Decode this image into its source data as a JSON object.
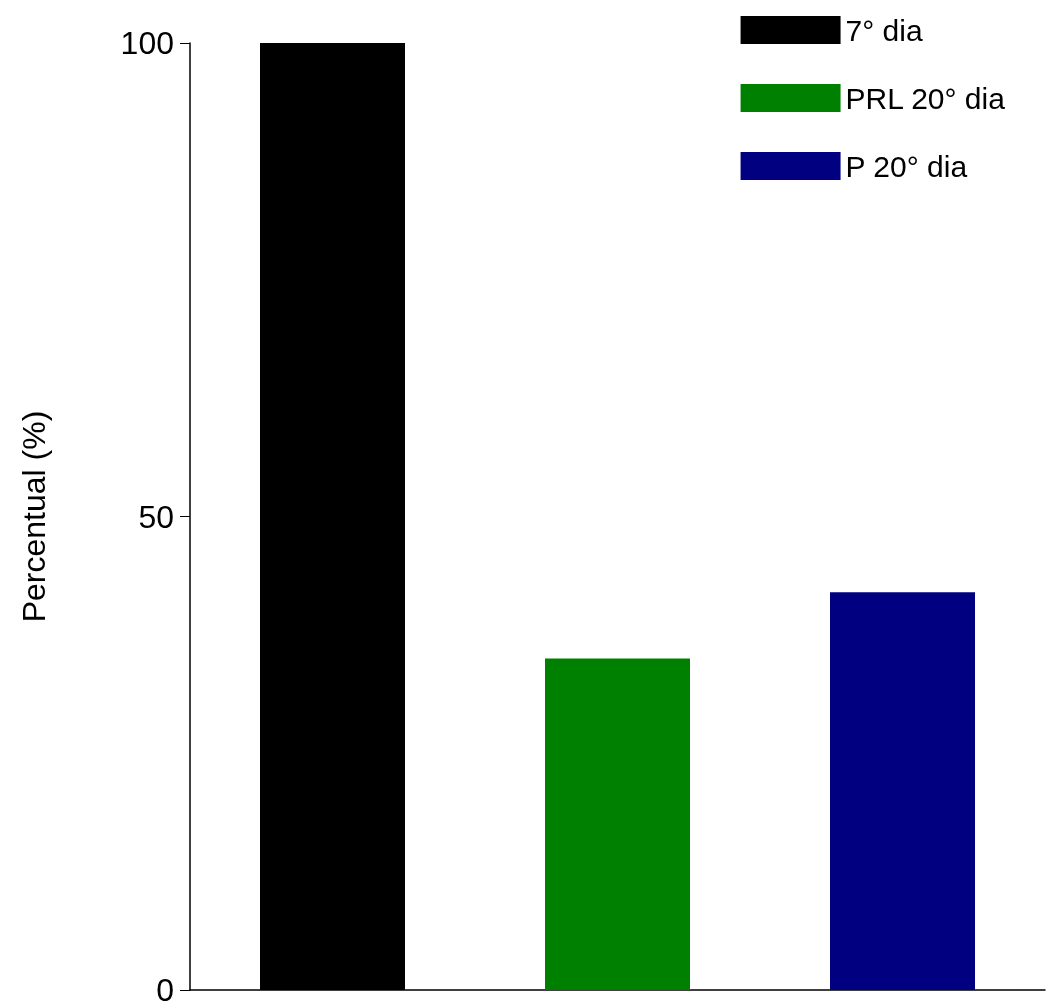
{
  "chart_data": {
    "type": "bar",
    "ylabel": "Percentual (%)",
    "categories": [
      null,
      null,
      null
    ],
    "series": [
      {
        "name": "7° dia",
        "color": "#000000",
        "values": [
          100,
          null,
          null
        ]
      },
      {
        "name": "PRL 20° dia",
        "color": "#008000",
        "values": [
          null,
          35,
          null
        ]
      },
      {
        "name": "P 20° dia",
        "color": "#000080",
        "values": [
          null,
          null,
          42
        ]
      }
    ],
    "ylim": [
      0,
      100
    ],
    "yticks": [
      0,
      50,
      100
    ],
    "grid": false,
    "legend": "top right"
  }
}
